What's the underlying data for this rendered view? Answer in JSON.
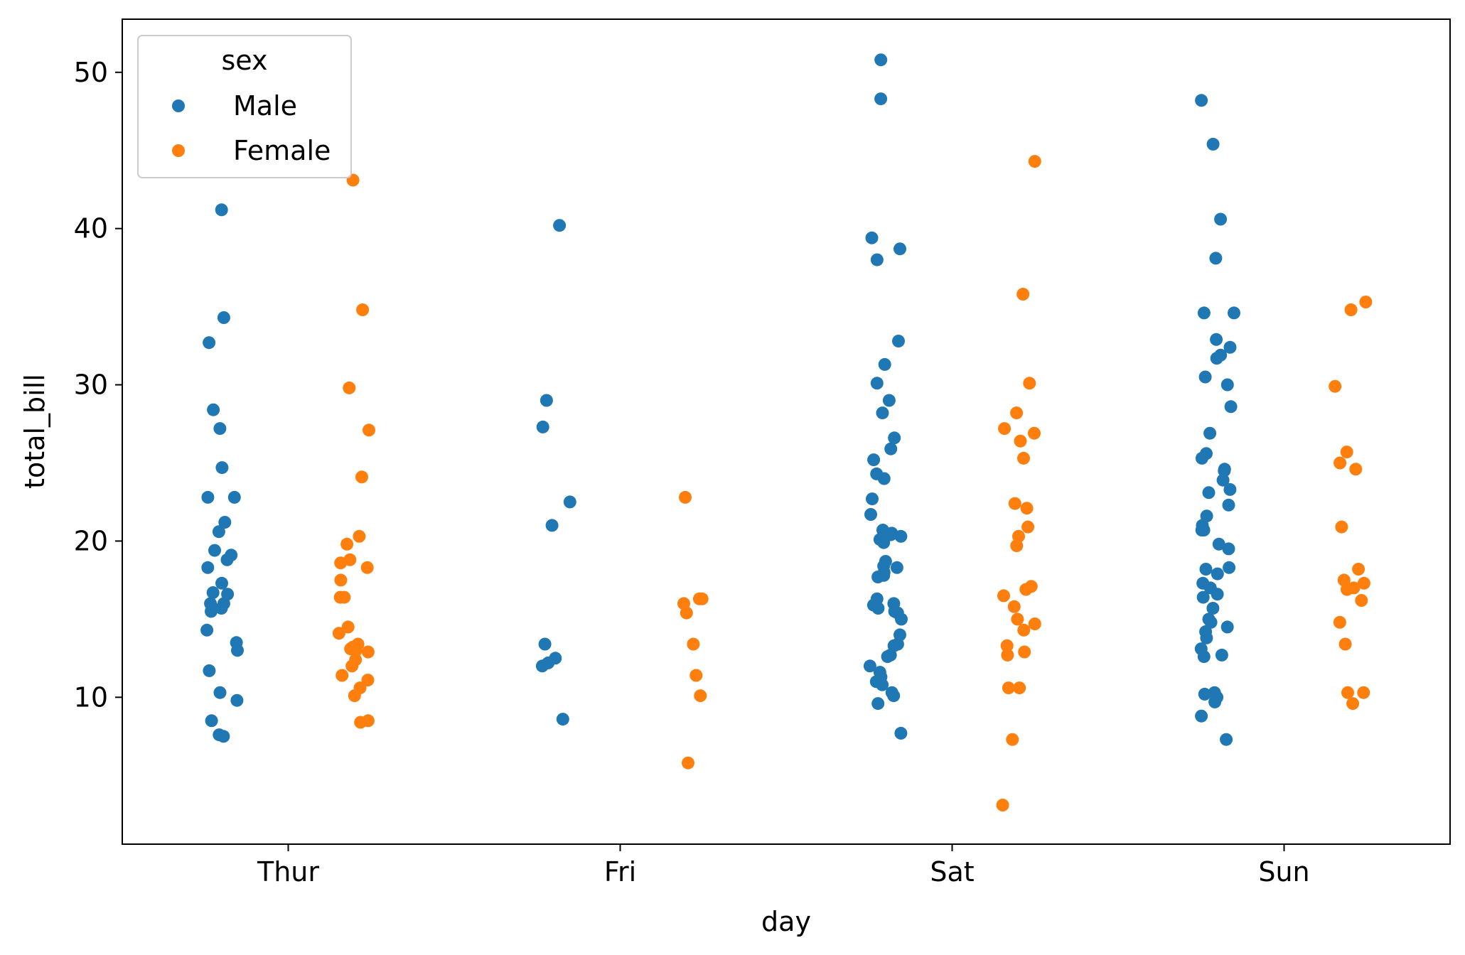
{
  "chart_data": {
    "type": "scatter",
    "title": "",
    "xlabel": "day",
    "ylabel": "total_bill",
    "categories": [
      "Thur",
      "Fri",
      "Sat",
      "Sun"
    ],
    "ylim": [
      0.6,
      53.4
    ],
    "yticks": [
      10,
      20,
      30,
      40,
      50
    ],
    "grid": false,
    "legend": {
      "title": "sex",
      "placement": "top-left",
      "entries": [
        {
          "label": "Male",
          "color": "#1f77b4"
        },
        {
          "label": "Female",
          "color": "#ff7f0e"
        }
      ]
    },
    "series": [
      {
        "name": "Male",
        "color": "#1f77b4",
        "dodge": -0.2,
        "values": {
          "Thur": [
            41.2,
            34.3,
            32.7,
            28.4,
            27.2,
            24.7,
            22.8,
            22.8,
            21.2,
            20.6,
            19.4,
            19.1,
            18.8,
            18.3,
            17.3,
            16.7,
            16.6,
            16.0,
            16.0,
            15.7,
            15.5,
            14.3,
            13.5,
            13.0,
            11.7,
            10.3,
            9.8,
            8.5,
            7.6,
            7.5
          ],
          "Fri": [
            40.2,
            29.0,
            27.3,
            22.5,
            21.0,
            13.4,
            12.5,
            12.2,
            12.0,
            8.6
          ],
          "Sat": [
            50.8,
            48.3,
            39.4,
            38.7,
            38.0,
            32.8,
            31.3,
            30.1,
            29.0,
            28.2,
            26.6,
            25.9,
            25.2,
            24.3,
            24.0,
            22.7,
            21.7,
            20.7,
            20.5,
            20.4,
            20.3,
            20.1,
            19.9,
            18.7,
            18.4,
            18.3,
            18.0,
            17.8,
            17.7,
            16.3,
            16.0,
            15.9,
            15.7,
            15.5,
            15.4,
            15.0,
            14.0,
            13.4,
            13.3,
            12.7,
            12.6,
            12.0,
            11.6,
            11.3,
            11.0,
            10.8,
            10.3,
            10.1,
            9.6,
            7.7
          ],
          "Sun": [
            48.2,
            45.4,
            40.6,
            38.1,
            34.6,
            34.6,
            32.9,
            32.4,
            31.9,
            31.7,
            30.5,
            30.0,
            28.6,
            26.9,
            25.3,
            25.6,
            24.6,
            24.5,
            23.9,
            23.3,
            23.1,
            22.3,
            21.6,
            21.0,
            20.7,
            20.7,
            19.8,
            19.5,
            18.3,
            18.2,
            17.9,
            17.3,
            17.0,
            16.6,
            16.4,
            15.7,
            15.0,
            14.8,
            14.5,
            14.2,
            13.8,
            13.1,
            12.7,
            12.6,
            10.3,
            10.2,
            10.0,
            9.7,
            8.8,
            7.3
          ]
        }
      },
      {
        "name": "Female",
        "color": "#ff7f0e",
        "dodge": 0.2,
        "values": {
          "Thur": [
            43.1,
            34.8,
            29.8,
            27.1,
            24.1,
            20.3,
            19.8,
            18.8,
            18.6,
            18.3,
            17.5,
            16.4,
            16.4,
            14.5,
            14.1,
            13.4,
            13.2,
            13.1,
            13.0,
            12.9,
            12.4,
            12.0,
            11.4,
            11.1,
            10.6,
            10.1,
            8.5,
            8.4
          ],
          "Fri": [
            22.8,
            16.3,
            16.3,
            16.0,
            15.4,
            13.4,
            11.4,
            10.1,
            5.8
          ],
          "Sat": [
            44.3,
            35.8,
            30.1,
            28.2,
            27.2,
            26.9,
            26.4,
            25.3,
            22.4,
            22.1,
            20.9,
            20.3,
            19.7,
            17.1,
            16.9,
            16.5,
            15.8,
            15.0,
            14.7,
            14.3,
            13.3,
            12.9,
            12.7,
            10.6,
            10.6,
            7.3,
            3.1
          ],
          "Sun": [
            35.3,
            34.8,
            29.9,
            25.7,
            25.0,
            24.6,
            20.9,
            18.2,
            17.5,
            17.3,
            17.0,
            16.9,
            16.2,
            14.8,
            13.4,
            10.3,
            10.3,
            9.6
          ]
        }
      }
    ]
  }
}
